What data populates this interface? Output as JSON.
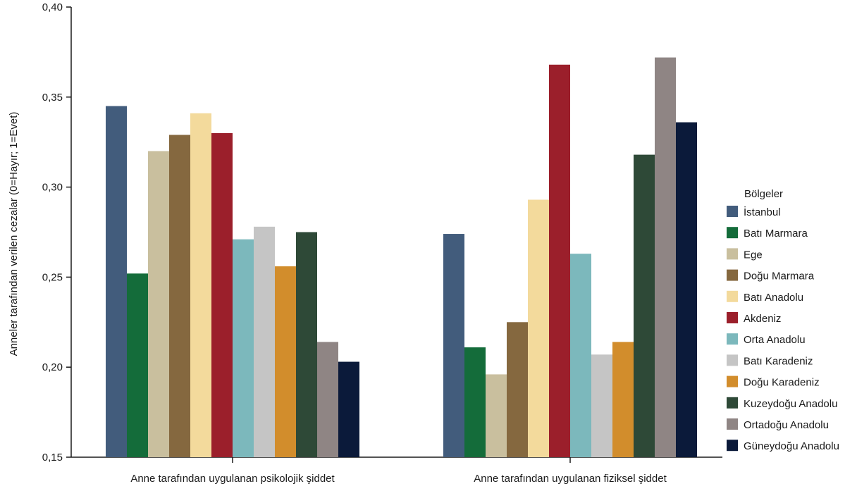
{
  "chart_data": {
    "type": "bar",
    "title": "",
    "xlabel": "",
    "ylabel": "Anneler tarafından verilen cezalar (0=Hayır; 1=Evet)",
    "ylim": [
      0.15,
      0.4
    ],
    "yticks": [
      "0,15",
      "0,20",
      "0,25",
      "0,30",
      "0,35",
      "0,40"
    ],
    "grid": false,
    "legend_title": "Bölgeler",
    "legend_position": "right",
    "categories": [
      "Anne tarafından uygulanan psikolojik şiddet",
      "Anne tarafından uygulanan fiziksel şiddet"
    ],
    "series": [
      {
        "name": "İstanbul",
        "color": "#425c7c",
        "values": [
          0.345,
          0.274
        ]
      },
      {
        "name": "Batı Marmara",
        "color": "#146c3a",
        "values": [
          0.252,
          0.211
        ]
      },
      {
        "name": "Ege",
        "color": "#c9bf9e",
        "values": [
          0.32,
          0.196
        ]
      },
      {
        "name": "Doğu Marmara",
        "color": "#85683f",
        "values": [
          0.329,
          0.225
        ]
      },
      {
        "name": "Batı Anadolu",
        "color": "#f3da9c",
        "values": [
          0.341,
          0.293
        ]
      },
      {
        "name": "Akdeniz",
        "color": "#9b1f2b",
        "values": [
          0.33,
          0.368
        ]
      },
      {
        "name": "Orta Anadolu",
        "color": "#7cb8bc",
        "values": [
          0.271,
          0.263
        ]
      },
      {
        "name": "Batı Karadeniz",
        "color": "#c5c5c5",
        "values": [
          0.278,
          0.207
        ]
      },
      {
        "name": "Doğu Karadeniz",
        "color": "#d28d2c",
        "values": [
          0.256,
          0.214
        ]
      },
      {
        "name": "Kuzeydoğu Anadolu",
        "color": "#2e4937",
        "values": [
          0.275,
          0.318
        ]
      },
      {
        "name": "Ortadoğu Anadolu",
        "color": "#8f8584",
        "values": [
          0.214,
          0.372
        ]
      },
      {
        "name": "Güneydoğu Anadolu",
        "color": "#0b1a3a",
        "values": [
          0.203,
          0.336
        ]
      }
    ]
  }
}
